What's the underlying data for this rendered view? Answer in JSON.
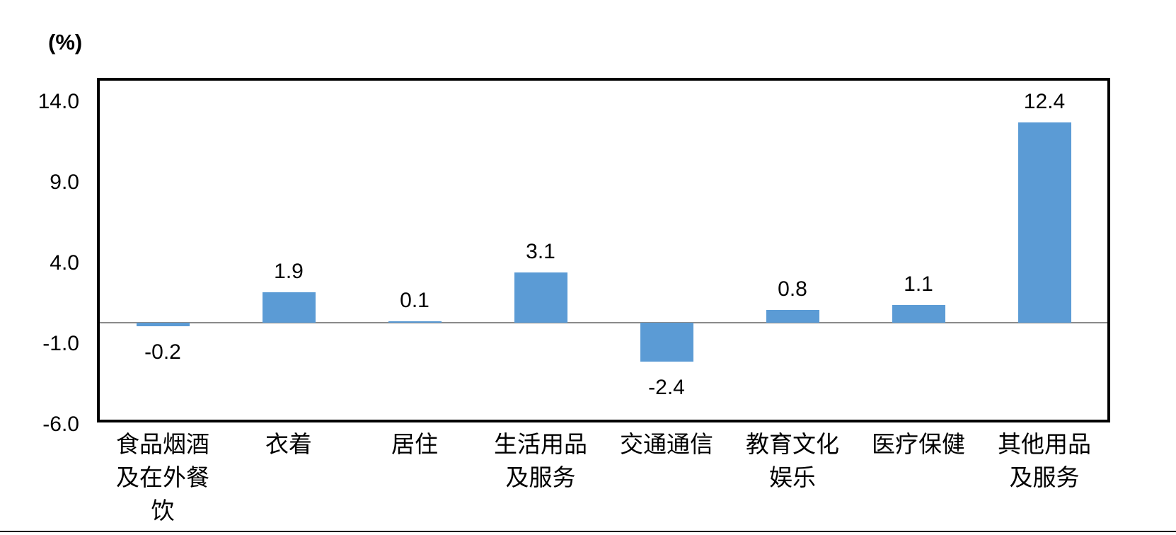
{
  "chart_data": {
    "type": "bar",
    "unit_label": "(%)",
    "categories": [
      "食品烟酒\n及在外餐\n饮",
      "衣着",
      "居住",
      "生活用品\n及服务",
      "交通通信",
      "教育文化\n娱乐",
      "医疗保健",
      "其他用品\n及服务"
    ],
    "values": [
      -0.2,
      1.9,
      0.1,
      3.1,
      -2.4,
      0.8,
      1.1,
      12.4
    ],
    "value_labels": [
      "-0.2",
      "1.9",
      "0.1",
      "3.1",
      "-2.4",
      "0.8",
      "1.1",
      "12.4"
    ],
    "y_ticks": [
      14.0,
      9.0,
      4.0,
      -1.0,
      -6.0
    ],
    "y_tick_labels": [
      "14.0",
      "9.0",
      "4.0",
      "-1.0",
      "-6.0"
    ],
    "ylim": [
      -6,
      15
    ],
    "grid": false,
    "bar_color": "#5B9BD5",
    "zero_line_color": "#8a8a8a",
    "border_color": "#000000",
    "text_color": "#000000"
  }
}
